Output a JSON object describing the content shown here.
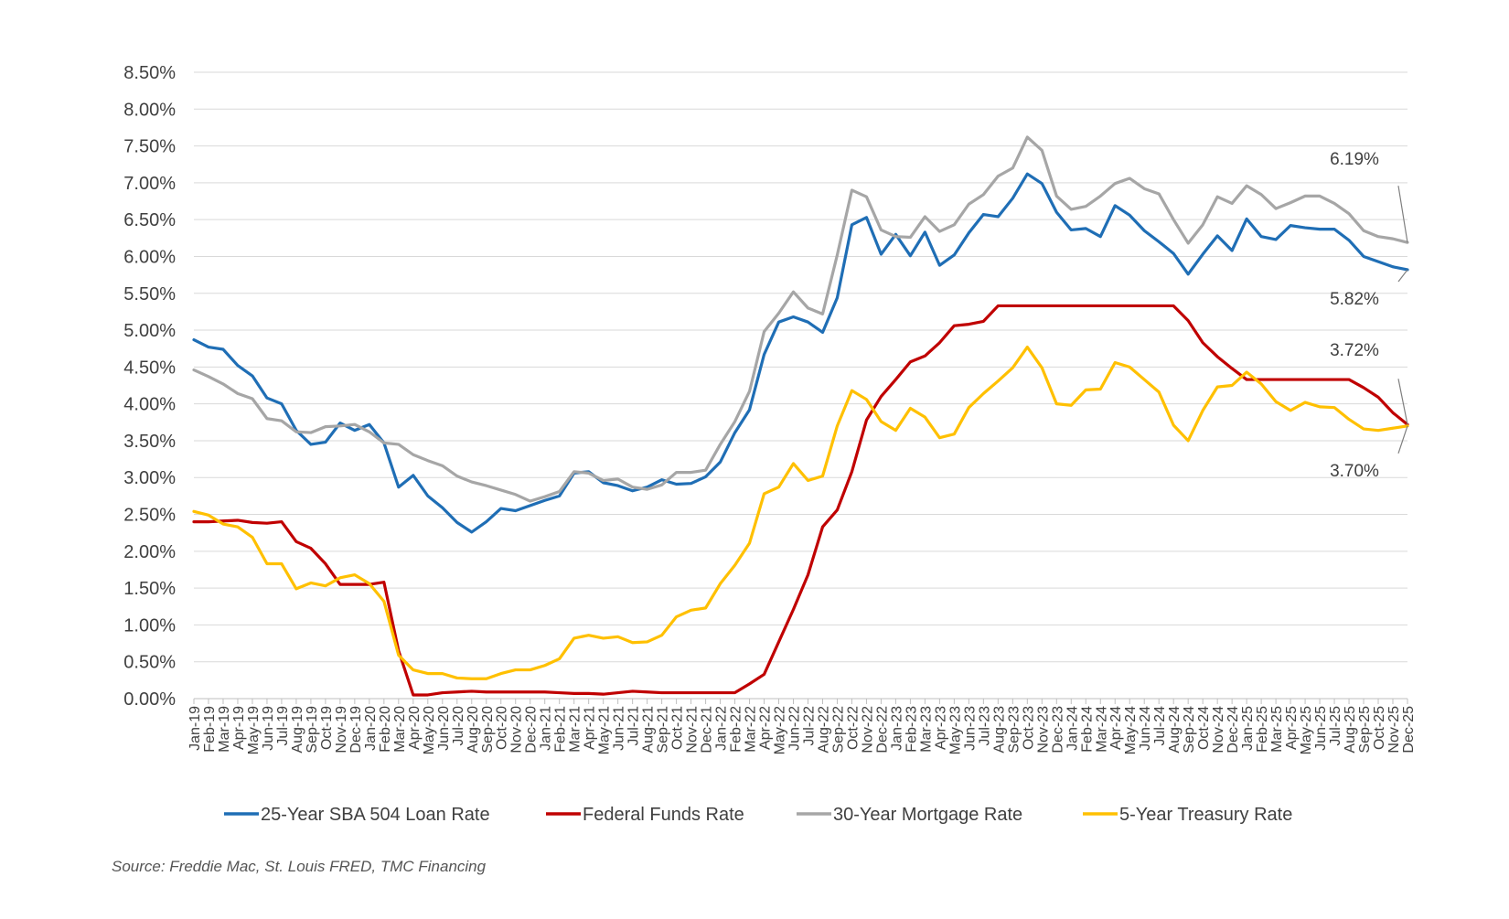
{
  "chart_data": {
    "type": "line",
    "title": "",
    "xlabel": "",
    "ylabel": "",
    "ylim": [
      0,
      8.5
    ],
    "yticks": [
      "0.00%",
      "0.50%",
      "1.00%",
      "1.50%",
      "2.00%",
      "2.50%",
      "3.00%",
      "3.50%",
      "4.00%",
      "4.50%",
      "5.00%",
      "5.50%",
      "6.00%",
      "6.50%",
      "7.00%",
      "7.50%",
      "8.00%",
      "8.50%"
    ],
    "categories": [
      "Jan-19",
      "Feb-19",
      "Mar-19",
      "Apr-19",
      "May-19",
      "Jun-19",
      "Jul-19",
      "Aug-19",
      "Sep-19",
      "Oct-19",
      "Nov-19",
      "Dec-19",
      "Jan-20",
      "Feb-20",
      "Mar-20",
      "Apr-20",
      "May-20",
      "Jun-20",
      "Jul-20",
      "Aug-20",
      "Sep-20",
      "Oct-20",
      "Nov-20",
      "Dec-20",
      "Jan-21",
      "Feb-21",
      "Mar-21",
      "Apr-21",
      "May-21",
      "Jun-21",
      "Jul-21",
      "Aug-21",
      "Sep-21",
      "Oct-21",
      "Nov-21",
      "Dec-21",
      "Jan-22",
      "Feb-22",
      "Mar-22",
      "Apr-22",
      "May-22",
      "Jun-22",
      "Jul-22",
      "Aug-22",
      "Sep-22",
      "Oct-22",
      "Nov-22",
      "Dec-22",
      "Jan-23",
      "Feb-23",
      "Mar-23",
      "Apr-23",
      "May-23",
      "Jun-23",
      "Jul-23",
      "Aug-23",
      "Sep-23",
      "Oct-23",
      "Nov-23",
      "Dec-23",
      "Jan-24",
      "Feb-24",
      "Mar-24",
      "Apr-24",
      "May-24",
      "Jun-24",
      "Jul-24",
      "Aug-24",
      "Sep-24",
      "Oct-24",
      "Nov-24",
      "Dec-24",
      "Jan-25",
      "Feb-25",
      "Mar-25",
      "Apr-25",
      "May-25",
      "Jun-25",
      "Jul-25",
      "Aug-25",
      "Sep-25",
      "Oct-25",
      "Nov-25",
      "Dec-25"
    ],
    "series": [
      {
        "name": "25-Year SBA 504 Loan Rate",
        "color": "#1f6eb5",
        "values": [
          4.87,
          4.77,
          4.74,
          4.52,
          4.38,
          4.08,
          4.0,
          3.64,
          3.45,
          3.48,
          3.74,
          3.64,
          3.72,
          3.47,
          2.87,
          3.03,
          2.75,
          2.59,
          2.39,
          2.26,
          2.4,
          2.58,
          2.55,
          2.62,
          2.69,
          2.75,
          3.06,
          3.08,
          2.93,
          2.89,
          2.82,
          2.87,
          2.97,
          2.91,
          2.92,
          3.01,
          3.21,
          3.61,
          3.92,
          4.67,
          5.11,
          5.18,
          5.11,
          4.97,
          5.44,
          6.43,
          6.53,
          6.03,
          6.3,
          6.01,
          6.33,
          5.88,
          6.02,
          6.32,
          6.57,
          6.54,
          6.79,
          7.12,
          6.99,
          6.6,
          6.36,
          6.38,
          6.27,
          6.69,
          6.56,
          6.35,
          6.2,
          6.04,
          5.76,
          6.03,
          6.28,
          6.08,
          6.51,
          6.27,
          6.23,
          6.42,
          6.39,
          6.37,
          6.37,
          6.22,
          6.0,
          5.93,
          5.86,
          5.82
        ]
      },
      {
        "name": "Federal Funds Rate",
        "color": "#c00000",
        "values": [
          2.4,
          2.4,
          2.41,
          2.42,
          2.39,
          2.38,
          2.4,
          2.13,
          2.04,
          1.83,
          1.55,
          1.55,
          1.55,
          1.58,
          0.65,
          0.05,
          0.05,
          0.08,
          0.09,
          0.1,
          0.09,
          0.09,
          0.09,
          0.09,
          0.09,
          0.08,
          0.07,
          0.07,
          0.06,
          0.08,
          0.1,
          0.09,
          0.08,
          0.08,
          0.08,
          0.08,
          0.08,
          0.08,
          0.2,
          0.33,
          0.77,
          1.21,
          1.68,
          2.33,
          2.56,
          3.08,
          3.78,
          4.1,
          4.33,
          4.57,
          4.65,
          4.83,
          5.06,
          5.08,
          5.12,
          5.33,
          5.33,
          5.33,
          5.33,
          5.33,
          5.33,
          5.33,
          5.33,
          5.33,
          5.33,
          5.33,
          5.33,
          5.33,
          5.13,
          4.83,
          4.64,
          4.48,
          4.33,
          4.33,
          4.33,
          4.33,
          4.33,
          4.33,
          4.33,
          4.33,
          4.22,
          4.09,
          3.88,
          3.72
        ]
      },
      {
        "name": "30-Year Mortgage Rate",
        "color": "#a6a6a6",
        "values": [
          4.46,
          4.37,
          4.27,
          4.14,
          4.07,
          3.8,
          3.77,
          3.62,
          3.61,
          3.69,
          3.7,
          3.72,
          3.62,
          3.47,
          3.45,
          3.31,
          3.23,
          3.16,
          3.02,
          2.94,
          2.89,
          2.83,
          2.77,
          2.68,
          2.74,
          2.81,
          3.08,
          3.06,
          2.96,
          2.98,
          2.87,
          2.84,
          2.9,
          3.07,
          3.07,
          3.1,
          3.45,
          3.76,
          4.17,
          4.98,
          5.23,
          5.52,
          5.3,
          5.22,
          6.02,
          6.9,
          6.81,
          6.36,
          6.27,
          6.26,
          6.54,
          6.34,
          6.43,
          6.71,
          6.84,
          7.09,
          7.2,
          7.62,
          7.44,
          6.82,
          6.64,
          6.68,
          6.82,
          6.99,
          7.06,
          6.92,
          6.85,
          6.5,
          6.18,
          6.43,
          6.81,
          6.72,
          6.96,
          6.84,
          6.65,
          6.73,
          6.82,
          6.82,
          6.72,
          6.58,
          6.35,
          6.27,
          6.24,
          6.19
        ]
      },
      {
        "name": "5-Year Treasury Rate",
        "color": "#ffc000",
        "values": [
          2.54,
          2.49,
          2.37,
          2.33,
          2.19,
          1.83,
          1.83,
          1.49,
          1.57,
          1.53,
          1.64,
          1.68,
          1.56,
          1.32,
          0.59,
          0.39,
          0.34,
          0.34,
          0.28,
          0.27,
          0.27,
          0.34,
          0.39,
          0.39,
          0.45,
          0.54,
          0.82,
          0.86,
          0.82,
          0.84,
          0.76,
          0.77,
          0.86,
          1.11,
          1.2,
          1.23,
          1.56,
          1.81,
          2.11,
          2.78,
          2.87,
          3.19,
          2.96,
          3.02,
          3.7,
          4.18,
          4.06,
          3.76,
          3.64,
          3.94,
          3.82,
          3.54,
          3.59,
          3.95,
          4.14,
          4.31,
          4.49,
          4.77,
          4.49,
          4.0,
          3.98,
          4.19,
          4.2,
          4.56,
          4.5,
          4.33,
          4.16,
          3.71,
          3.5,
          3.91,
          4.23,
          4.25,
          4.43,
          4.27,
          4.03,
          3.91,
          4.02,
          3.96,
          3.95,
          3.79,
          3.66,
          3.64,
          3.67,
          3.7
        ]
      }
    ],
    "annotations": [
      {
        "label": "6.19%",
        "series": "30-Year Mortgage Rate",
        "value": 6.19
      },
      {
        "label": "5.82%",
        "series": "25-Year SBA 504 Loan Rate",
        "value": 5.82
      },
      {
        "label": "3.72%",
        "series": "Federal Funds Rate",
        "value": 3.72
      },
      {
        "label": "3.70%",
        "series": "5-Year Treasury Rate",
        "value": 3.7
      }
    ],
    "grid": true,
    "legend": "bottom",
    "source": "Source: Freddie Mac, St. Louis FRED, TMC Financing"
  }
}
